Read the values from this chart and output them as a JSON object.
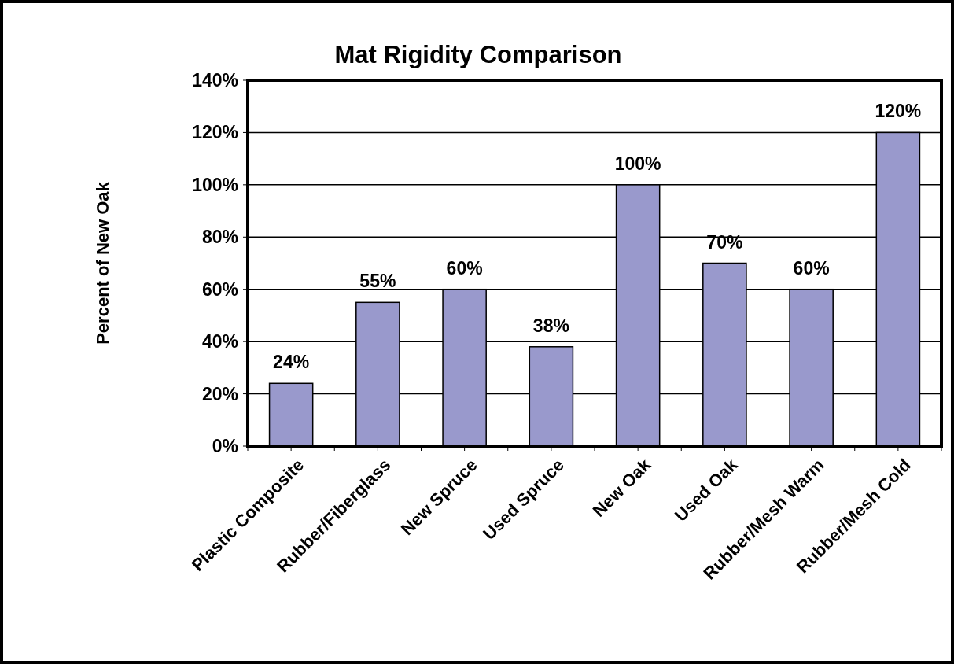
{
  "chart_data": {
    "type": "bar",
    "title": "Mat Rigidity Comparison",
    "ylabel": "Percent of New Oak",
    "categories": [
      "Plastic Composite",
      "Rubber/Fiberglass",
      "New Spruce",
      "Used Spruce",
      "New Oak",
      "Used Oak",
      "Rubber/Mesh Warm",
      "Rubber/Mesh Cold"
    ],
    "values": [
      24,
      55,
      60,
      38,
      100,
      70,
      60,
      120
    ],
    "value_labels": [
      "24%",
      "55%",
      "60%",
      "38%",
      "100%",
      "70%",
      "60%",
      "120%"
    ],
    "color": "#9999cc",
    "ylim": [
      0,
      140
    ],
    "yticks": [
      {
        "value": 0,
        "label": "0%"
      },
      {
        "value": 20,
        "label": "20%"
      },
      {
        "value": 40,
        "label": "40%"
      },
      {
        "value": 60,
        "label": "60%"
      },
      {
        "value": 80,
        "label": "80%"
      },
      {
        "value": 100,
        "label": "100%"
      },
      {
        "value": 120,
        "label": "120%"
      },
      {
        "value": 140,
        "label": "140%"
      }
    ],
    "grid": "y"
  }
}
